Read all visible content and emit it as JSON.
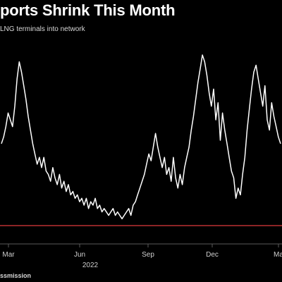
{
  "header": {
    "title": "ports Shrink This Month",
    "subtitle": "LNG terminals into network"
  },
  "footer": {
    "source": "ssmission"
  },
  "chart_data": {
    "type": "line",
    "xlabel": "",
    "ylabel": "",
    "x_ticks": [
      "Mar",
      "Jun",
      "Sep",
      "Dec",
      "Ma"
    ],
    "year_label": "2022",
    "grid": false,
    "colors": {
      "line": "#ffffff",
      "reference": "#e0393e",
      "background": "#000000"
    },
    "reference_value": 0,
    "ylim": [
      0,
      100
    ],
    "series": [
      {
        "values": [
          48,
          52,
          58,
          66,
          62,
          58,
          70,
          86,
          96,
          90,
          82,
          74,
          64,
          56,
          48,
          42,
          36,
          40,
          34,
          40,
          32,
          30,
          26,
          34,
          28,
          24,
          30,
          22,
          26,
          20,
          24,
          18,
          20,
          16,
          18,
          14,
          16,
          12,
          16,
          10,
          14,
          12,
          16,
          10,
          12,
          8,
          10,
          8,
          6,
          8,
          10,
          6,
          8,
          6,
          4,
          6,
          8,
          10,
          6,
          12,
          14,
          18,
          22,
          26,
          30,
          36,
          42,
          38,
          46,
          54,
          46,
          40,
          34,
          40,
          30,
          34,
          26,
          40,
          28,
          22,
          30,
          24,
          34,
          40,
          46,
          56,
          64,
          74,
          84,
          92,
          100,
          96,
          88,
          78,
          70,
          80,
          62,
          72,
          50,
          66,
          56,
          48,
          40,
          32,
          28,
          16,
          22,
          18,
          30,
          40,
          56,
          68,
          80,
          90,
          94,
          86,
          78,
          70,
          82,
          62,
          56,
          72,
          64,
          58,
          52,
          48
        ]
      }
    ]
  }
}
